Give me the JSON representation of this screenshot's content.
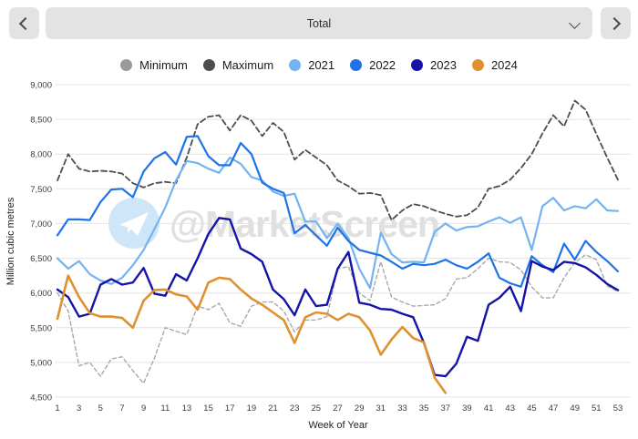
{
  "toolbar": {
    "prev_icon": "chevron-left",
    "next_icon": "chevron-right",
    "dropdown_value": "Total",
    "dropdown_caret": "chevron-down"
  },
  "watermark": {
    "text": "@MarketScreen",
    "icon": "telegram-paper-plane-logo",
    "icon_circle_color": "#cfe5f8",
    "text_color": "#e0e0e0"
  },
  "colors": {
    "toolbar_bg": "#e3e3e3",
    "grid": "#e3e3e3",
    "tick_text": "#3c3c3c"
  },
  "chart_data": {
    "type": "line",
    "title": "",
    "xlabel": "Week of Year",
    "ylabel": "Million cubic metres",
    "ylim": [
      4500,
      9000
    ],
    "ytick_step": 500,
    "grid": "horizontal",
    "legend_position": "top",
    "x": [
      1,
      2,
      3,
      4,
      5,
      6,
      7,
      8,
      9,
      10,
      11,
      12,
      13,
      14,
      15,
      16,
      17,
      18,
      19,
      20,
      21,
      22,
      23,
      24,
      25,
      26,
      27,
      28,
      29,
      30,
      31,
      32,
      33,
      34,
      35,
      36,
      37,
      38,
      39,
      40,
      41,
      42,
      43,
      44,
      45,
      46,
      47,
      48,
      49,
      50,
      51,
      52,
      53
    ],
    "xticks": [
      1,
      3,
      5,
      7,
      9,
      11,
      13,
      15,
      17,
      19,
      21,
      23,
      25,
      27,
      29,
      31,
      33,
      35,
      37,
      39,
      41,
      43,
      45,
      47,
      49,
      51,
      53
    ],
    "series": [
      {
        "name": "Minimum",
        "color": "#a8a8a8",
        "legend_color": "#9a9a9a",
        "style": "dashed",
        "dash": [
          4,
          3
        ],
        "width": 1.4,
        "values": [
          6000,
          5740,
          4950,
          5000,
          4800,
          5050,
          5080,
          4880,
          4700,
          5060,
          5500,
          5450,
          5400,
          5810,
          5760,
          5850,
          5570,
          5520,
          5810,
          5870,
          5870,
          5740,
          5440,
          5610,
          5610,
          5660,
          6350,
          6380,
          6000,
          5890,
          6450,
          5940,
          5870,
          5810,
          5820,
          5830,
          5920,
          6200,
          6220,
          6350,
          6500,
          6450,
          6440,
          6330,
          6090,
          5930,
          5930,
          6220,
          6440,
          6550,
          6480,
          6100,
          6020
        ]
      },
      {
        "name": "Maximum",
        "color": "#4d4d4d",
        "legend_color": "#4d4d4d",
        "style": "dashed",
        "dash": [
          6,
          3.5
        ],
        "width": 1.8,
        "values": [
          7620,
          8000,
          7790,
          7750,
          7760,
          7750,
          7720,
          7580,
          7520,
          7580,
          7600,
          7580,
          7950,
          8430,
          8540,
          8560,
          8340,
          8560,
          8480,
          8260,
          8450,
          8320,
          7920,
          8060,
          7950,
          7840,
          7620,
          7540,
          7430,
          7440,
          7410,
          7050,
          7190,
          7280,
          7250,
          7190,
          7140,
          7100,
          7120,
          7230,
          7500,
          7540,
          7630,
          7800,
          8000,
          8300,
          8560,
          8400,
          8770,
          8640,
          8290,
          7950,
          7630
        ]
      },
      {
        "name": "2021",
        "color": "#74b3f1",
        "legend_color": "#74b3f1",
        "style": "solid",
        "dash": null,
        "width": 2.2,
        "values": [
          6500,
          6350,
          6460,
          6270,
          6180,
          6130,
          6220,
          6400,
          6620,
          6920,
          7230,
          7620,
          7900,
          7870,
          7790,
          7730,
          7950,
          7860,
          7670,
          7620,
          7460,
          7400,
          7430,
          7030,
          7030,
          6790,
          7000,
          6790,
          6350,
          6070,
          6870,
          6560,
          6440,
          6450,
          6440,
          6880,
          7000,
          6900,
          6950,
          6960,
          7030,
          7090,
          7010,
          7090,
          6620,
          7250,
          7370,
          7190,
          7250,
          7220,
          7350,
          7190,
          7180
        ]
      },
      {
        "name": "2022",
        "color": "#1e73e8",
        "legend_color": "#1e73e8",
        "style": "solid",
        "dash": null,
        "width": 2.2,
        "values": [
          6830,
          7060,
          7060,
          7050,
          7310,
          7490,
          7500,
          7380,
          7750,
          7940,
          8030,
          7850,
          8250,
          8260,
          7970,
          7840,
          7840,
          8160,
          8000,
          7590,
          7500,
          7440,
          6860,
          6980,
          6830,
          6680,
          6940,
          6750,
          6620,
          6580,
          6540,
          6450,
          6350,
          6420,
          6400,
          6420,
          6480,
          6400,
          6350,
          6450,
          6570,
          6220,
          6140,
          6090,
          6530,
          6400,
          6300,
          6710,
          6480,
          6750,
          6590,
          6460,
          6310
        ]
      },
      {
        "name": "2023",
        "color": "#1414a8",
        "legend_color": "#1414a8",
        "style": "solid",
        "dash": null,
        "width": 2.4,
        "values": [
          6050,
          5940,
          5660,
          5700,
          6120,
          6200,
          6120,
          6150,
          6360,
          5990,
          5960,
          6270,
          6180,
          6500,
          6850,
          7080,
          7060,
          6640,
          6560,
          6450,
          6050,
          5910,
          5680,
          6050,
          5810,
          5830,
          6350,
          6590,
          5860,
          5830,
          5770,
          5760,
          5700,
          5650,
          5280,
          4820,
          4800,
          4980,
          5370,
          5310,
          5830,
          5930,
          6090,
          5740,
          6460,
          6380,
          6330,
          6450,
          6430,
          6370,
          6260,
          6130,
          6040
        ]
      },
      {
        "name": "2024",
        "color": "#e0912f",
        "legend_color": "#e0912f",
        "style": "solid",
        "dash": null,
        "width": 2.6,
        "values": [
          5630,
          6250,
          5940,
          5710,
          5660,
          5660,
          5640,
          5500,
          5890,
          6040,
          6050,
          5980,
          5950,
          5760,
          6150,
          6220,
          6200,
          6050,
          5920,
          5830,
          5720,
          5610,
          5280,
          5650,
          5720,
          5700,
          5610,
          5700,
          5650,
          5460,
          5110,
          5330,
          5510,
          5350,
          5290,
          4780,
          4560,
          null,
          null,
          null,
          null,
          null,
          null,
          null,
          null,
          null,
          null,
          null,
          null,
          null,
          null,
          null,
          null
        ]
      }
    ]
  }
}
